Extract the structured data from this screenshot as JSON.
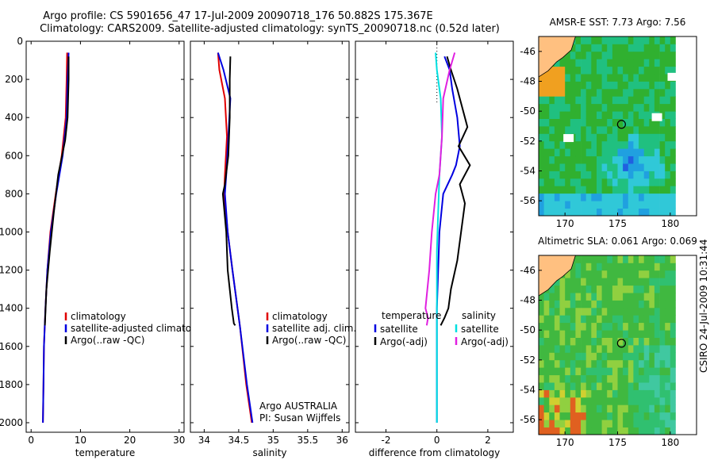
{
  "header": {
    "line1": "Argo profile: CS 5901656_47 17-Jul-2009 20090718_176 50.882S 175.367E",
    "line2": "Climatology: CARS2009. Satellite-adjusted climatology: synTS_20090718.nc (0.52d later)"
  },
  "side_label": "CSIRO 24-Jul-2009 10:31:44",
  "colors": {
    "climatology": "#e00000",
    "satellite_adjusted": "#0000e0",
    "argo": "#000000",
    "sat_diff_salinity": "#00e0e0",
    "argo_diff_salinity": "#e020e0",
    "land": "#ffc080"
  },
  "chart_data": [
    {
      "type": "line",
      "xlabel": "temperature",
      "xlim": [
        -1,
        31
      ],
      "xticks": [
        0,
        10,
        20,
        30
      ],
      "ylim": [
        2050,
        0
      ],
      "yticks": [
        0,
        200,
        400,
        600,
        800,
        1000,
        1200,
        1400,
        1600,
        1800,
        2000
      ],
      "series": [
        {
          "name": "climatology",
          "color": "#e00000",
          "x": [
            7.3,
            7.2,
            7.0,
            6.2,
            5.0,
            3.9,
            3.3,
            2.9,
            2.6,
            2.5,
            2.4
          ],
          "y": [
            60,
            200,
            400,
            600,
            800,
            1000,
            1200,
            1400,
            1600,
            1800,
            2000
          ]
        },
        {
          "name": "satellite-adjusted climatology",
          "color": "#0000e0",
          "x": [
            7.6,
            7.4,
            7.2,
            6.4,
            5.1,
            4.0,
            3.3,
            2.9,
            2.6,
            2.5,
            2.4
          ],
          "y": [
            60,
            200,
            400,
            600,
            800,
            1000,
            1200,
            1400,
            1600,
            1800,
            2000
          ]
        },
        {
          "name": "Argo(..raw -QC)",
          "color": "#000000",
          "x": [
            7.6,
            7.6,
            7.4,
            6.9,
            5.5,
            4.6,
            3.8,
            3.1,
            2.8
          ],
          "y": [
            80,
            200,
            400,
            520,
            700,
            900,
            1100,
            1300,
            1490
          ]
        }
      ],
      "legend": [
        "climatology",
        "satellite-adjusted climatology",
        "Argo(..raw -QC)"
      ]
    },
    {
      "type": "line",
      "xlabel": "salinity",
      "xlim": [
        33.8,
        36.1
      ],
      "xticks": [
        34,
        34.5,
        35,
        35.5,
        36
      ],
      "ylim": [
        2050,
        0
      ],
      "series": [
        {
          "name": "climatology",
          "color": "#e00000",
          "x": [
            34.2,
            34.22,
            34.3,
            34.33,
            34.3,
            34.29,
            34.34,
            34.41,
            34.52,
            34.61,
            34.69
          ],
          "y": [
            60,
            150,
            300,
            500,
            700,
            800,
            1000,
            1200,
            1500,
            1800,
            2000
          ]
        },
        {
          "name": "satellite adj. clim.",
          "color": "#0000e0",
          "x": [
            34.2,
            34.28,
            34.38,
            34.35,
            34.32,
            34.3,
            34.34,
            34.41,
            34.52,
            34.62,
            34.7
          ],
          "y": [
            60,
            150,
            300,
            500,
            700,
            800,
            1000,
            1200,
            1500,
            1800,
            2000
          ]
        },
        {
          "name": "Argo(..raw -QC)",
          "color": "#000000",
          "x": [
            34.38,
            34.37,
            34.37,
            34.35,
            34.3,
            34.27,
            34.32,
            34.34,
            34.4,
            34.43,
            34.45
          ],
          "y": [
            80,
            200,
            400,
            600,
            750,
            800,
            1000,
            1200,
            1400,
            1480,
            1490
          ]
        }
      ],
      "legend": [
        "climatology",
        "satellite adj. clim.",
        "Argo(..raw -QC)"
      ],
      "annotations": [
        "Argo AUSTRALIA",
        "PI: Susan Wijffels"
      ]
    },
    {
      "type": "line",
      "xlabel": "difference from climatology",
      "xlim": [
        -3.2,
        3.0
      ],
      "xticks": [
        -2,
        0,
        2
      ],
      "ylim": [
        2050,
        0
      ],
      "series": [
        {
          "name": "temperature satellite",
          "color": "#0000e0",
          "x": [
            0.3,
            0.5,
            0.6,
            0.8,
            0.9,
            0.75,
            0.6,
            0.25,
            0.1,
            0.05,
            0.0,
            0.0,
            0.0,
            0.0
          ],
          "y": [
            80,
            150,
            250,
            400,
            550,
            650,
            700,
            800,
            1000,
            1200,
            1400,
            1600,
            1800,
            2000
          ]
        },
        {
          "name": "temperature Argo(-adj)",
          "color": "#000000",
          "x": [
            0.4,
            0.55,
            0.8,
            1.2,
            0.85,
            1.3,
            0.9,
            1.1,
            0.95,
            0.8,
            0.55,
            0.45,
            0.3,
            0.15
          ],
          "y": [
            80,
            150,
            250,
            450,
            550,
            650,
            750,
            850,
            1000,
            1150,
            1300,
            1400,
            1450,
            1490
          ]
        },
        {
          "name": "salinity satellite",
          "color": "#00e0e0",
          "x": [
            -0.05,
            0.0,
            0.15,
            0.2,
            0.1,
            0.05,
            0.0,
            0.0,
            0.0,
            0.0,
            0.0
          ],
          "y": [
            60,
            150,
            300,
            500,
            700,
            900,
            1100,
            1300,
            1500,
            1800,
            2000
          ]
        },
        {
          "name": "salinity Argo(-adj)",
          "color": "#e020e0",
          "x": [
            0.7,
            0.5,
            0.25,
            0.2,
            0.1,
            -0.05,
            -0.2,
            -0.3,
            -0.45,
            -0.35,
            -0.4
          ],
          "y": [
            60,
            150,
            300,
            500,
            700,
            800,
            1000,
            1200,
            1400,
            1450,
            1490
          ]
        }
      ],
      "legend_headers": [
        "temperature",
        "salinity"
      ],
      "legend": [
        "satellite",
        "Argo(-adj)",
        "satellite",
        "Argo(-adj)"
      ]
    },
    {
      "type": "heatmap",
      "title": "AMSR-E SST: 7.73 Argo: 7.56",
      "xlim": [
        167.5,
        182.5
      ],
      "xticks": [
        170,
        175,
        180
      ],
      "ylim": [
        -57,
        -45
      ],
      "yticks": [
        -46,
        -48,
        -50,
        -52,
        -54,
        -56
      ],
      "marker": {
        "lon": 175.367,
        "lat": -50.882
      }
    },
    {
      "type": "heatmap",
      "title": "Altimetric SLA: 0.061 Argo: 0.069",
      "xlim": [
        167.5,
        182.5
      ],
      "xticks": [
        170,
        175,
        180
      ],
      "ylim": [
        -57,
        -45
      ],
      "yticks": [
        -46,
        -48,
        -50,
        -52,
        -54,
        -56
      ],
      "marker": {
        "lon": 175.367,
        "lat": -50.882
      }
    }
  ]
}
